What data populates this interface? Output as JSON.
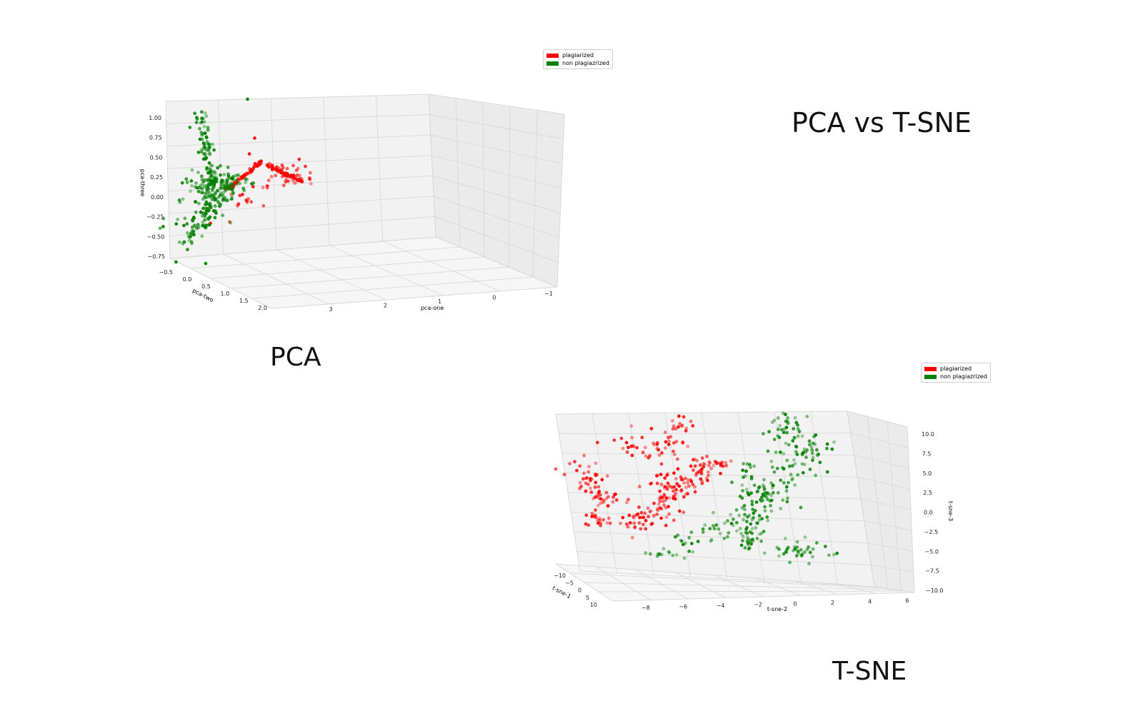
{
  "titles": {
    "main": "PCA vs T-SNE",
    "pca": "PCA",
    "tsne": "T-SNE"
  },
  "colors": {
    "plagiarized": "#ff0000",
    "non_plagiarized": "#008000"
  },
  "chart_data": [
    {
      "type": "scatter",
      "subtype": "3d",
      "title": "",
      "xlabel": "pca-one",
      "ylabel": "pca-two",
      "zlabel": "pca-three",
      "xlim": [
        -1.2,
        3.3
      ],
      "ylim": [
        -0.7,
        2.1
      ],
      "zlim": [
        -0.85,
        1.1
      ],
      "xticks": [
        "3",
        "2",
        "1",
        "0",
        "−1"
      ],
      "yticks": [
        "−0.5",
        "0.0",
        "0.5",
        "1.0",
        "1.5",
        "2.0"
      ],
      "zticks": [
        "1.00",
        "0.75",
        "0.50",
        "0.25",
        "0.00",
        "−0.25",
        "−0.50",
        "−0.75"
      ],
      "grid": true,
      "legend_position": "top-right",
      "series": [
        {
          "name": "plagiarized",
          "color": "#ff0000",
          "clusters": [
            {
              "shape": "line",
              "from": [
                2.3,
                0.1,
                -0.05
              ],
              "to": [
                1.7,
                0.1,
                0.3
              ],
              "count": 70,
              "spread": 0.02
            },
            {
              "shape": "line",
              "from": [
                1.6,
                0.1,
                0.25
              ],
              "to": [
                1.0,
                0.1,
                0.0
              ],
              "count": 70,
              "spread": 0.02
            },
            {
              "shape": "blob",
              "center": [
                1.3,
                0.2,
                0.12
              ],
              "spread": [
                0.2,
                0.1,
                0.1
              ],
              "count": 35
            },
            {
              "shape": "blob",
              "center": [
                2.0,
                0.2,
                -0.15
              ],
              "spread": [
                0.15,
                0.05,
                0.1
              ],
              "count": 15
            }
          ],
          "extra_points": [
            [
              2.6,
              0.1,
              -0.45
            ],
            [
              1.8,
              0.0,
              0.6
            ],
            [
              1.9,
              0.0,
              0.4
            ]
          ]
        },
        {
          "name": "non plagiazrized",
          "color": "#008000",
          "clusters": [
            {
              "shape": "blob",
              "center": [
                2.5,
                0.1,
                0.02
              ],
              "spread": [
                0.22,
                0.1,
                0.1
              ],
              "count": 160
            },
            {
              "shape": "line",
              "from": [
                2.6,
                0.1,
                0.2
              ],
              "to": [
                2.7,
                0.1,
                1.0
              ],
              "count": 60,
              "spread": 0.06
            },
            {
              "shape": "line",
              "from": [
                2.5,
                0.1,
                -0.1
              ],
              "to": [
                3.0,
                0.2,
                -0.7
              ],
              "count": 60,
              "spread": 0.08
            },
            {
              "shape": "blob",
              "center": [
                2.7,
                0.1,
                -0.35
              ],
              "spread": [
                0.3,
                0.05,
                0.12
              ],
              "count": 40
            }
          ],
          "extra_points": [
            [
              3.4,
              0.2,
              -0.45
            ],
            [
              3.2,
              0.4,
              -0.9
            ],
            [
              2.7,
              0.3,
              -0.95
            ],
            [
              1.9,
              0.0,
              1.1
            ]
          ]
        }
      ]
    },
    {
      "type": "scatter",
      "subtype": "3d",
      "title": "",
      "xlabel": "t-sne-1",
      "ylabel": "t-sne-2",
      "zlabel": "t-sne-3",
      "xlim": [
        -12,
        11
      ],
      "ylim": [
        -9,
        7
      ],
      "zlim": [
        -10.5,
        10.5
      ],
      "xticks": [
        "−10",
        "−5",
        "0",
        "5",
        "10"
      ],
      "yticks": [
        "−8",
        "−6",
        "−4",
        "−2",
        "0",
        "2",
        "4",
        "6"
      ],
      "zticks": [
        "10.0",
        "7.5",
        "5.0",
        "2.5",
        "0.0",
        "−2.5",
        "−5.0",
        "−7.5",
        "−10.0"
      ],
      "grid": true,
      "legend_position": "top-right",
      "series": [
        {
          "name": "plagiarized",
          "color": "#ff0000",
          "clusters": [
            {
              "shape": "line",
              "from": [
                0,
                -6.0,
                -4.0
              ],
              "to": [
                0,
                -4.3,
                -2.0
              ],
              "count": 40,
              "spread": 0.12
            },
            {
              "shape": "line",
              "from": [
                0,
                -4.3,
                -2.0
              ],
              "to": [
                0,
                -1.5,
                3.0
              ],
              "count": 60,
              "spread": 0.15
            },
            {
              "shape": "line",
              "from": [
                0,
                -3.5,
                0.5
              ],
              "to": [
                0,
                -1.8,
                4.0
              ],
              "count": 40,
              "spread": 0.15
            },
            {
              "shape": "line",
              "from": [
                0,
                -8.2,
                4.5
              ],
              "to": [
                0,
                -7.3,
                -0.5
              ],
              "count": 40,
              "spread": 0.12
            },
            {
              "shape": "line",
              "from": [
                0,
                -7.3,
                -0.5
              ],
              "to": [
                0,
                -6.2,
                -0.8
              ],
              "count": 15,
              "spread": 0.1
            },
            {
              "shape": "line",
              "from": [
                0,
                -6.0,
                6.0
              ],
              "to": [
                0,
                -4.5,
                7.0
              ],
              "count": 15,
              "spread": 0.15
            },
            {
              "shape": "line",
              "from": [
                0,
                -2.8,
                8.0
              ],
              "to": [
                0,
                -1.9,
                9.3
              ],
              "count": 15,
              "spread": 0.1
            },
            {
              "shape": "line",
              "from": [
                0,
                -1.6,
                3.5
              ],
              "to": [
                0,
                -0.3,
                4.5
              ],
              "count": 20,
              "spread": 0.1
            },
            {
              "shape": "line",
              "from": [
                0,
                -7.9,
                -3.0
              ],
              "to": [
                0,
                -7.6,
                -4.0
              ],
              "count": 20,
              "spread": 0.1
            },
            {
              "shape": "blob",
              "center": [
                0,
                -3.5,
                5.5
              ],
              "spread": [
                0,
                0.8,
                1.2
              ],
              "count": 30
            }
          ],
          "extra_points": []
        },
        {
          "name": "non plagiazrized",
          "color": "#008000",
          "clusters": [
            {
              "shape": "line",
              "from": [
                0,
                -5.0,
                -8.0
              ],
              "to": [
                0,
                1.5,
                -2.0
              ],
              "count": 60,
              "spread": 0.12
            },
            {
              "shape": "line",
              "from": [
                0,
                1.0,
                -2.0
              ],
              "to": [
                0,
                3.5,
                3.5
              ],
              "count": 50,
              "spread": 0.2
            },
            {
              "shape": "line",
              "from": [
                0,
                3.5,
                3.5
              ],
              "to": [
                0,
                4.7,
                8.0
              ],
              "count": 40,
              "spread": 0.2
            },
            {
              "shape": "blob",
              "center": [
                0,
                1.3,
                1.0
              ],
              "spread": [
                0,
                0.5,
                2.0
              ],
              "count": 40
            },
            {
              "shape": "blob",
              "center": [
                0,
                3.5,
                9.0
              ],
              "spread": [
                0,
                0.5,
                0.8
              ],
              "count": 25
            },
            {
              "shape": "blob",
              "center": [
                0,
                0.5,
                -5.0
              ],
              "spread": [
                0,
                0.35,
                1.0
              ],
              "count": 35
            },
            {
              "shape": "blob",
              "center": [
                0,
                3.3,
                -6.5
              ],
              "spread": [
                0,
                0.9,
                0.7
              ],
              "count": 35
            },
            {
              "shape": "line",
              "from": [
                0,
                4.0,
                5.0
              ],
              "to": [
                0,
                4.8,
                7.0
              ],
              "count": 15,
              "spread": 0.1
            }
          ],
          "extra_points": []
        }
      ]
    }
  ]
}
